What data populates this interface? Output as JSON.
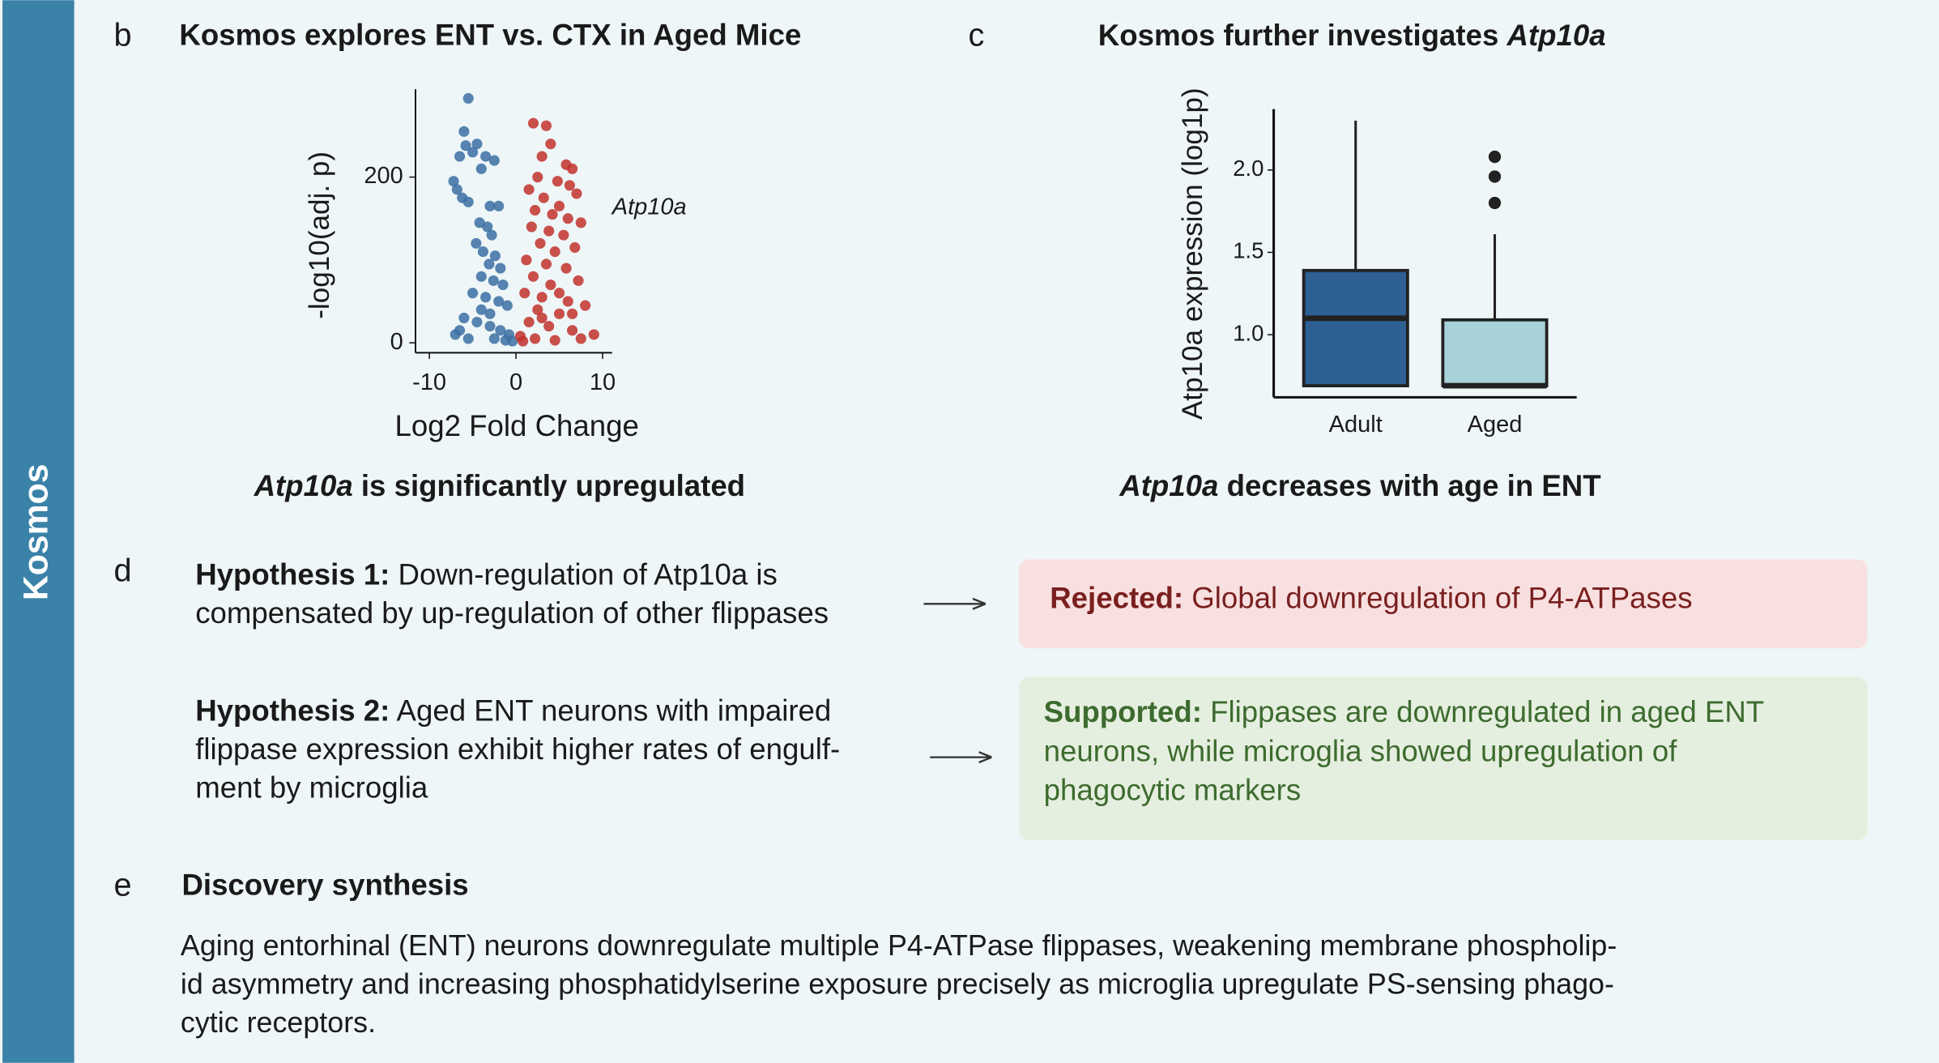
{
  "sidebar": "Kosmos",
  "panel_b": {
    "letter": "b",
    "title": "Kosmos explores ENT vs. CTX in Aged Mice",
    "caption": {
      "gene": "Atp10a",
      "text": " is significantly upregulated"
    }
  },
  "panel_c": {
    "letter": "c",
    "title": "Kosmos further investigates ",
    "title_gene": "Atp10a",
    "caption": {
      "gene": "Atp10a",
      "text": " decreases with age in ENT"
    }
  },
  "panel_d": {
    "letter": "d",
    "hypotheses": [
      {
        "label": "Hypothesis 1:",
        "lines": [
          " Down-regulation of Atp10a is",
          "compensated by up-regulation of other flippases"
        ],
        "verdict": {
          "label": "Rejected:",
          "lines": [
            " Global downregulation of P4-ATPases"
          ]
        }
      },
      {
        "label": "Hypothesis 2:",
        "lines": [
          " Aged ENT neurons with impaired",
          "flippase expression exhibit higher rates of engulf-",
          "ment by microglia"
        ],
        "verdict": {
          "label": "Supported:",
          "lines": [
            " Flippases are downregulated in aged ENT",
            "neurons, while microglia showed upregulation of",
            "phagocytic markers"
          ]
        }
      }
    ]
  },
  "panel_e": {
    "letter": "e",
    "title": "Discovery synthesis",
    "lines": [
      "Aging entorhinal (ENT) neurons downregulate multiple P4-ATPase flippases, weakening membrane phospholip-",
      "id asymmetry and increasing phosphatidylserine exposure precisely as microglia upregulate PS-sensing phago-",
      "cytic receptors."
    ]
  },
  "chart_data": [
    {
      "type": "scatter",
      "x_label": "Log2 Fold Change",
      "y_label": "-log10(adj. p)",
      "xlim": [
        -11.6,
        11.1
      ],
      "ylim": [
        -12,
        306
      ],
      "xticks": [
        -10,
        0,
        10
      ],
      "yticks": [
        0,
        200
      ],
      "annotations": [
        "Atp10a"
      ],
      "series": [
        {
          "color": "#3b6fa3",
          "x": [
            -5.5,
            -6,
            -5.8,
            -4.5,
            -6.5,
            -5,
            -3.5,
            -4,
            -2.5,
            -7.2,
            -6.8,
            -6.2,
            -5.5,
            -3,
            -2,
            -4.2,
            -3.3,
            -2.8,
            -4.6,
            -3.8,
            -2.4,
            -3.1,
            -1.8,
            -4,
            -2.6,
            -1.5,
            -5,
            -3.5,
            -2,
            -1,
            -6,
            -4.5,
            -3,
            -1.8,
            -0.8,
            -7,
            -5.5,
            -2.5,
            -1.2,
            -0.4,
            -4,
            -3,
            -6.5
          ],
          "values": [
            295,
            255,
            238,
            240,
            225,
            230,
            225,
            210,
            220,
            195,
            185,
            175,
            170,
            165,
            165,
            145,
            140,
            130,
            120,
            110,
            105,
            95,
            90,
            80,
            75,
            70,
            60,
            55,
            50,
            45,
            30,
            25,
            20,
            15,
            10,
            10,
            5,
            5,
            3,
            2,
            40,
            35,
            15
          ]
        },
        {
          "color": "#c2312d",
          "x": [
            2,
            3.5,
            4,
            3,
            5.8,
            6.5,
            2.5,
            4.8,
            6.2,
            1.5,
            7,
            3.2,
            5,
            2.2,
            4.2,
            6,
            7.5,
            1.8,
            3.8,
            5.5,
            2.8,
            6.8,
            4.5,
            1.2,
            3.5,
            5.8,
            2,
            7.2,
            4,
            1,
            3,
            6,
            8,
            2.5,
            5,
            1.5,
            3.8,
            6.5,
            9,
            0.5,
            2.2,
            4.5,
            7.5,
            0.8,
            3,
            5,
            6.5
          ],
          "values": [
            265,
            262,
            240,
            225,
            215,
            210,
            200,
            195,
            190,
            185,
            180,
            175,
            165,
            160,
            155,
            150,
            145,
            140,
            135,
            130,
            120,
            115,
            110,
            100,
            95,
            90,
            80,
            75,
            70,
            60,
            55,
            50,
            45,
            40,
            35,
            25,
            20,
            15,
            10,
            8,
            5,
            3,
            5,
            2,
            30,
            60,
            35
          ]
        }
      ]
    },
    {
      "type": "box",
      "y_label": "Atp10a expression (log1p)",
      "categories": [
        "Adult",
        "Aged"
      ],
      "colors": [
        "#2e6094",
        "#a8d2da"
      ],
      "ylim": [
        0.62,
        2.37
      ],
      "yticks": [
        {
          "value": 1,
          "label": "1.0"
        },
        {
          "value": 1.5,
          "label": "1.5"
        },
        {
          "value": 2,
          "label": "2.0"
        }
      ],
      "min": [
        0.69,
        0.69
      ],
      "q1": [
        0.69,
        0.69
      ],
      "median": [
        1.1,
        0.69
      ],
      "q3": [
        1.39,
        1.09
      ],
      "max": [
        2.3,
        1.61
      ],
      "outliers": [
        [],
        [
          2.08,
          1.96,
          1.8
        ]
      ]
    }
  ]
}
